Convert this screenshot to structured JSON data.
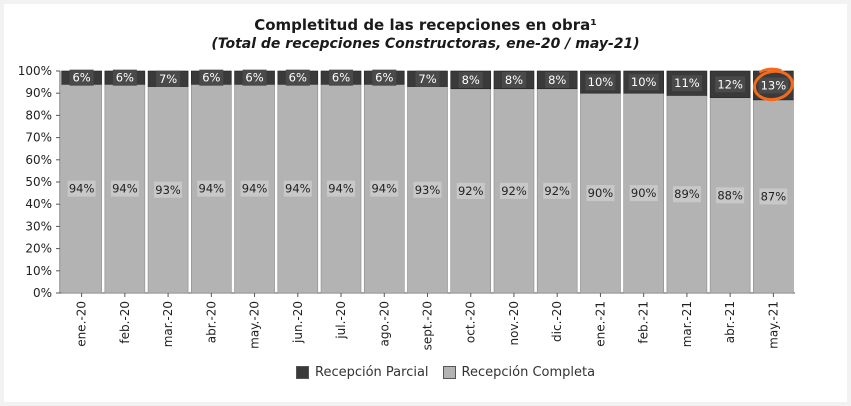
{
  "chart_data": {
    "type": "bar",
    "stacked": true,
    "title": "Completitud de las recepciones en obra¹",
    "subtitle": "(Total de recepciones Constructoras, ene-20 / may-21)",
    "categories": [
      "ene.-20",
      "feb.-20",
      "mar.-20",
      "abr.-20",
      "may.-20",
      "jun.-20",
      "jul.-20",
      "ago.-20",
      "sept.-20",
      "oct.-20",
      "nov.-20",
      "dic.-20",
      "ene.-21",
      "feb.-21",
      "mar.-21",
      "abr.-21",
      "may.-21"
    ],
    "series": [
      {
        "name": "Recepción Completa",
        "color": "#b3b3b3",
        "values": [
          94,
          94,
          93,
          94,
          94,
          94,
          94,
          94,
          93,
          92,
          92,
          92,
          90,
          90,
          89,
          88,
          87
        ],
        "labels": [
          "94%",
          "94%",
          "93%",
          "94%",
          "94%",
          "94%",
          "94%",
          "94%",
          "93%",
          "92%",
          "92%",
          "92%",
          "90%",
          "90%",
          "89%",
          "88%",
          "87%"
        ]
      },
      {
        "name": "Recepción Parcial",
        "color": "#3a3a3a",
        "values": [
          6,
          6,
          7,
          6,
          6,
          6,
          6,
          6,
          7,
          8,
          8,
          8,
          10,
          10,
          11,
          12,
          13
        ],
        "labels": [
          "6%",
          "6%",
          "7%",
          "6%",
          "6%",
          "6%",
          "6%",
          "6%",
          "7%",
          "8%",
          "8%",
          "8%",
          "10%",
          "10%",
          "11%",
          "12%",
          "13%"
        ]
      }
    ],
    "yticks": [
      "0%",
      "10%",
      "20%",
      "30%",
      "40%",
      "50%",
      "60%",
      "70%",
      "80%",
      "90%",
      "100%"
    ],
    "ylim": [
      0,
      100
    ],
    "legend_position": "bottom",
    "highlight": {
      "category": "may.-21",
      "color": "#f26b1d",
      "shape": "hand-drawn circle"
    }
  },
  "legend": [
    {
      "label": "Recepción Parcial",
      "color": "#3a3a3a"
    },
    {
      "label": "Recepción Completa",
      "color": "#b3b3b3"
    }
  ]
}
